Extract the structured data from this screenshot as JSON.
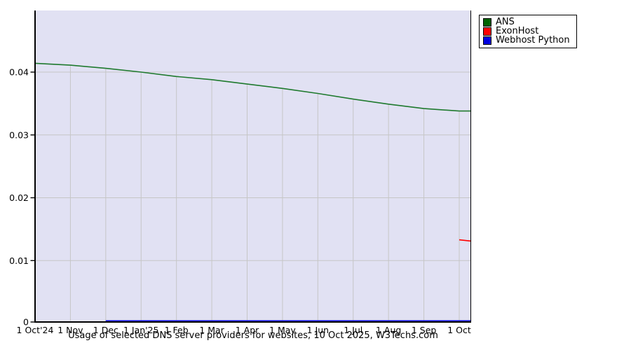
{
  "legend": {
    "items": [
      {
        "label": "ANS",
        "color": "#006400"
      },
      {
        "label": "ExonHost",
        "color": "#ff0000"
      },
      {
        "label": "Webhost Python",
        "color": "#0000e0"
      }
    ]
  },
  "chart_data": {
    "type": "line",
    "title": "Usage of selected DNS server providers for websites, 10 Oct 2025, W3Techs.com",
    "xlabel": "",
    "ylabel": "",
    "x_tick_labels": [
      "1 Oct'24",
      "1 Nov",
      "1 Dec",
      "1 Jan'25",
      "1 Feb",
      "1 Mar",
      "1 Apr",
      "1 May",
      "1 Jun",
      "1 Jul",
      "1 Aug",
      "1 Sep",
      "1 Oct"
    ],
    "y_tick_values": [
      0,
      0.01,
      0.02,
      0.03,
      0.04
    ],
    "ylim": [
      0,
      0.0498
    ],
    "xlim_months": [
      0,
      12.34
    ],
    "grid": true,
    "legend_position": "top-right-outside",
    "plot_bg": "#e1e1f3",
    "grid_color": "#c6c6c6",
    "axis_color": "#000000",
    "series": [
      {
        "name": "ANS",
        "color": "#1f7a2e",
        "x_months": [
          0,
          1,
          2,
          3,
          4,
          5,
          6,
          7,
          8,
          9,
          10,
          11,
          12,
          12.34
        ],
        "values": [
          0.0414,
          0.0411,
          0.0406,
          0.04,
          0.0393,
          0.0388,
          0.0381,
          0.0374,
          0.0366,
          0.0357,
          0.0349,
          0.0342,
          0.0338,
          0.0338
        ]
      },
      {
        "name": "ExonHost",
        "color": "#ff0000",
        "x_months": [
          12,
          12.34
        ],
        "values": [
          0.0133,
          0.0131
        ]
      },
      {
        "name": "Webhost Python",
        "color": "#0000e0",
        "x_months": [
          2,
          12.34
        ],
        "values": [
          0.0004,
          0.0004
        ]
      }
    ]
  }
}
